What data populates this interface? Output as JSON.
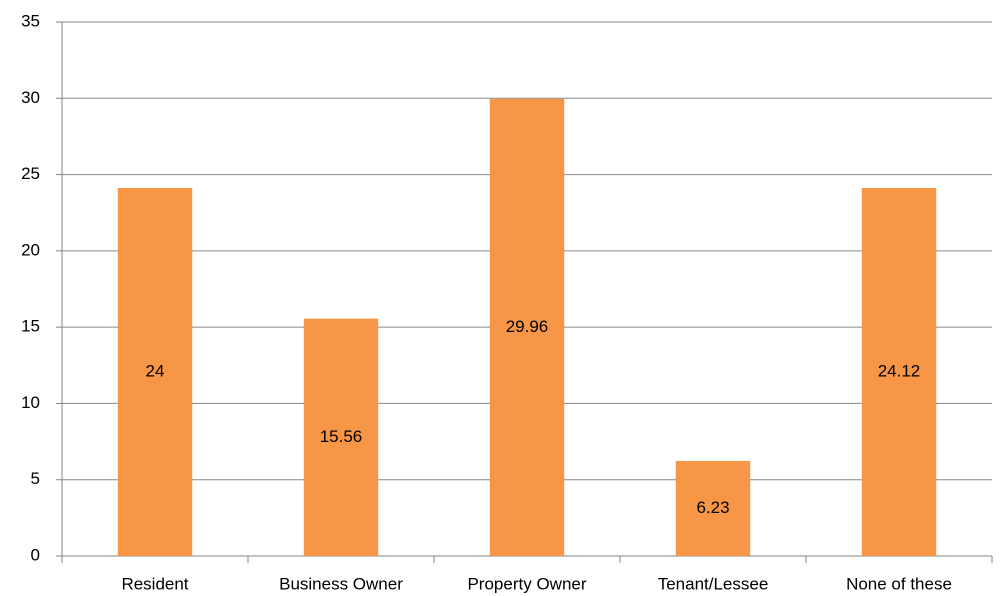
{
  "chart_data": {
    "type": "bar",
    "categories": [
      "Resident",
      "Business Owner",
      "Property Owner",
      "Tenant/Lessee",
      "None of these"
    ],
    "values": [
      24.12,
      15.56,
      29.96,
      6.23,
      24.12
    ],
    "value_labels": [
      "24",
      "15.56",
      "29.96",
      "6.23",
      "24.12"
    ],
    "color": "#f79646",
    "ylim": [
      0,
      35
    ],
    "yticks": [
      0,
      5,
      10,
      15,
      20,
      25,
      30,
      35
    ],
    "grid": true
  }
}
